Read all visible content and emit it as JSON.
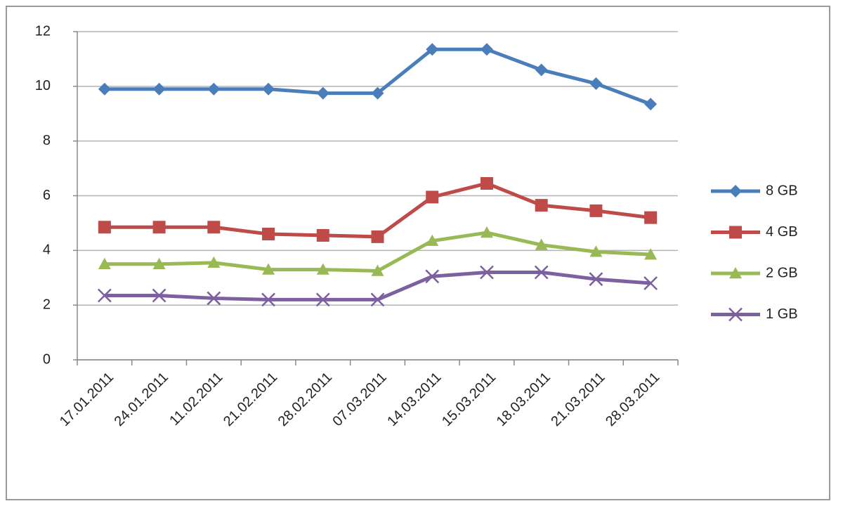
{
  "chart_data": {
    "type": "line",
    "categories": [
      "17.01.2011",
      "24.01.2011",
      "11.02.2011",
      "21.02.2011",
      "28.02.2011",
      "07.03.2011",
      "14.03.2011",
      "15.03.2011",
      "18.03.2011",
      "21.03.2011",
      "28.03.2011"
    ],
    "series": [
      {
        "name": "8 GB",
        "color": "#4a7ebb",
        "marker": "diamond",
        "values": [
          9.9,
          9.9,
          9.9,
          9.9,
          9.75,
          9.75,
          11.35,
          11.35,
          10.6,
          10.1,
          9.35
        ]
      },
      {
        "name": "4 GB",
        "color": "#be4b48",
        "marker": "square",
        "values": [
          4.85,
          4.85,
          4.85,
          4.6,
          4.55,
          4.5,
          5.95,
          6.45,
          5.65,
          5.45,
          5.2
        ]
      },
      {
        "name": "2 GB",
        "color": "#98b954",
        "marker": "triangle",
        "values": [
          3.5,
          3.5,
          3.55,
          3.3,
          3.3,
          3.25,
          4.35,
          4.65,
          4.2,
          3.95,
          3.85
        ]
      },
      {
        "name": "1 GB",
        "color": "#7d60a0",
        "marker": "x",
        "values": [
          2.35,
          2.35,
          2.25,
          2.2,
          2.2,
          2.2,
          3.05,
          3.2,
          3.2,
          2.95,
          2.8
        ]
      }
    ],
    "ylim": [
      0,
      12
    ],
    "yticks": [
      0,
      2,
      4,
      6,
      8,
      10,
      12
    ],
    "grid": true,
    "legend": "right"
  }
}
